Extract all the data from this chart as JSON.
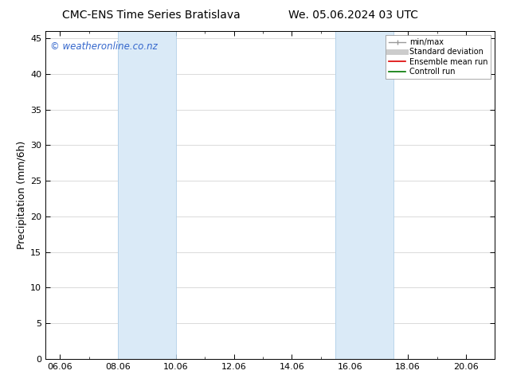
{
  "title_left": "CMC-ENS Time Series Bratislava",
  "title_right": "We. 05.06.2024 03 UTC",
  "ylabel": "Precipitation (mm/6h)",
  "watermark": "© weatheronline.co.nz",
  "xlim": [
    5.5,
    21.0
  ],
  "ylim": [
    0,
    46
  ],
  "yticks": [
    0,
    5,
    10,
    15,
    20,
    25,
    30,
    35,
    40,
    45
  ],
  "xtick_labels": [
    "06.06",
    "08.06",
    "10.06",
    "12.06",
    "14.06",
    "16.06",
    "18.06",
    "20.06"
  ],
  "xtick_positions": [
    6.0,
    8.0,
    10.0,
    12.0,
    14.0,
    16.0,
    18.0,
    20.0
  ],
  "shade_bands": [
    {
      "xmin": 8.0,
      "xmax": 10.0
    },
    {
      "xmin": 15.5,
      "xmax": 17.5
    }
  ],
  "shade_color": "#daeaf7",
  "shade_edge_color": "#b0cfe8",
  "bg_color": "#ffffff",
  "plot_bg_color": "#ffffff",
  "legend_labels": [
    "min/max",
    "Standard deviation",
    "Ensemble mean run",
    "Controll run"
  ],
  "legend_colors": [
    "#aaaaaa",
    "#cccccc",
    "#dd0000",
    "#007700"
  ],
  "title_fontsize": 10,
  "tick_fontsize": 8,
  "ylabel_fontsize": 9,
  "watermark_color": "#3366cc",
  "watermark_fontsize": 8.5
}
